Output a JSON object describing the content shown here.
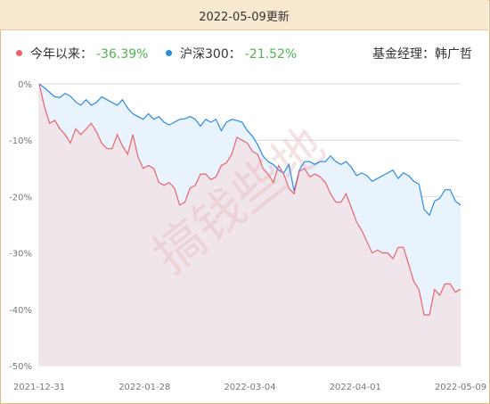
{
  "header": {
    "update_text": "2022-05-09更新"
  },
  "legend": {
    "fund": {
      "label": "今年以来：",
      "value": "-36.39%",
      "color": "#e8646c"
    },
    "index": {
      "label": "沪深300：",
      "value": "-21.52%",
      "color": "#2b8be3"
    },
    "manager": "基金经理：韩广哲"
  },
  "watermark": "搞钱些地",
  "chart_data": {
    "type": "area",
    "x_tick_labels": [
      "2021-12-31",
      "2022-01-28",
      "2022-03-04",
      "2022-04-01",
      "2022-05-09"
    ],
    "y_tick_labels": [
      "0%",
      "-10%",
      "-20%",
      "-30%",
      "-40%",
      "-50%"
    ],
    "ylim": [
      -50,
      0
    ],
    "grid": true,
    "series": [
      {
        "name": "今年以来",
        "color": "#e8646c",
        "fill": "#f1e5ec",
        "values": [
          0,
          -4,
          -7,
          -6.5,
          -8,
          -9,
          -10.5,
          -8,
          -9,
          -8,
          -7,
          -8.5,
          -10.5,
          -11.5,
          -11.5,
          -9,
          -11,
          -12.5,
          -9,
          -13,
          -15,
          -14.5,
          -15,
          -17.5,
          -18,
          -17.5,
          -18.5,
          -21.5,
          -21,
          -18.5,
          -18,
          -16,
          -16,
          -17,
          -16.5,
          -14.5,
          -14,
          -12.5,
          -9.5,
          -10,
          -10.5,
          -12,
          -12.5,
          -15,
          -16,
          -17.5,
          -14.5,
          -16,
          -18.5,
          -19.5,
          -15.5,
          -15,
          -16.5,
          -16,
          -16.5,
          -17.5,
          -19.5,
          -21,
          -21,
          -19.5,
          -22,
          -24.5,
          -26,
          -28,
          -30,
          -29.5,
          -30,
          -30,
          -31,
          -29,
          -29,
          -32,
          -35,
          -36.5,
          -41,
          -41,
          -36.5,
          -37.5,
          -35.5,
          -35.5,
          -37,
          -36.39
        ]
      },
      {
        "name": "沪深300",
        "color": "#2b8be3",
        "fill": "#e9f3fd",
        "values": [
          0,
          -0.7,
          -1.5,
          -2.3,
          -2.4,
          -1.7,
          -2.2,
          -3.2,
          -3.8,
          -2.8,
          -3.8,
          -3.3,
          -2.3,
          -2.8,
          -3.3,
          -3.8,
          -2.8,
          -4.3,
          -5.3,
          -5.8,
          -6.3,
          -5.3,
          -6.3,
          -5.8,
          -6.8,
          -7.3,
          -6.8,
          -6.3,
          -6.2,
          -5.8,
          -6.3,
          -7.5,
          -6.3,
          -6.8,
          -6.3,
          -8.3,
          -6.8,
          -6.3,
          -6.5,
          -6.8,
          -8.3,
          -9.3,
          -10.8,
          -12.8,
          -13.8,
          -14.3,
          -15.3,
          -15.8,
          -14.3,
          -19,
          -15.3,
          -13.8,
          -13.8,
          -14.3,
          -13.8,
          -13.8,
          -12.8,
          -13.8,
          -14.3,
          -13.8,
          -14.8,
          -16.3,
          -15.8,
          -16.3,
          -17.3,
          -16.8,
          -16.3,
          -15.8,
          -15.3,
          -16.8,
          -15.8,
          -16.3,
          -17.3,
          -17.8,
          -22.3,
          -23.3,
          -20.8,
          -20.3,
          -18.8,
          -18.8,
          -20.8,
          -21.52
        ]
      }
    ]
  }
}
